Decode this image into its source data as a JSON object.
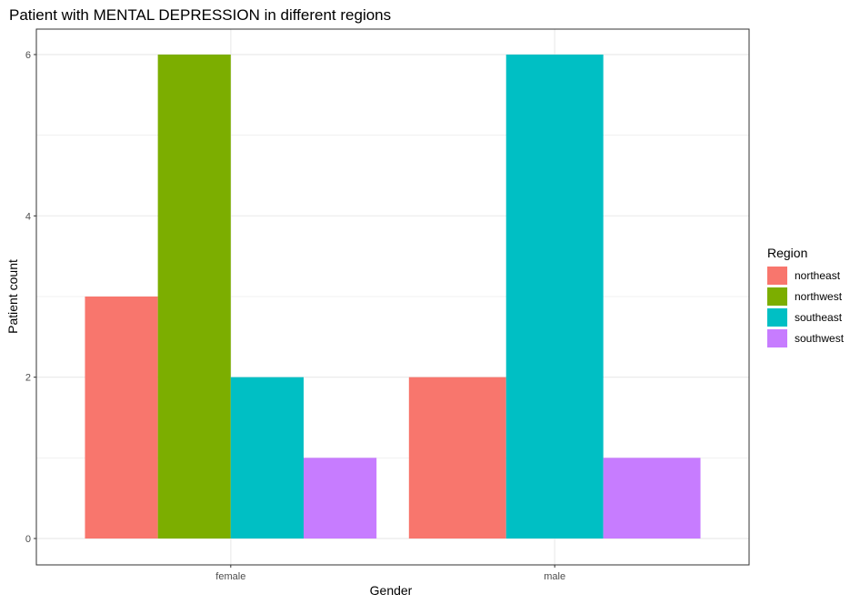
{
  "chart_data": {
    "type": "bar",
    "title": "Patient with MENTAL DEPRESSION in different regions",
    "xlabel": "Gender",
    "ylabel": "Patient count",
    "categories": [
      "female",
      "male"
    ],
    "ylim": [
      0,
      6.4
    ],
    "yticks": [
      0,
      2,
      4,
      6
    ],
    "grid": true,
    "legend": {
      "title": "Region",
      "placement": "right"
    },
    "series": [
      {
        "name": "northeast",
        "color": "#F8766D",
        "values": [
          3,
          2
        ]
      },
      {
        "name": "northwest",
        "color": "#7CAE00",
        "values": [
          6,
          0
        ]
      },
      {
        "name": "southeast",
        "color": "#00BFC4",
        "values": [
          2,
          6
        ]
      },
      {
        "name": "southwest",
        "color": "#C77CFF",
        "values": [
          1,
          1
        ]
      }
    ]
  }
}
